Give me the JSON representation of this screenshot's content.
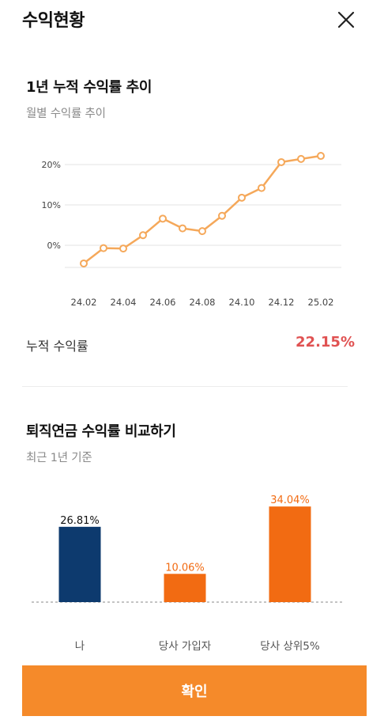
{
  "header": {
    "title": "수익현황"
  },
  "trend": {
    "title": "1년 누적 수익률 추이",
    "subtitle": "월별 수익률 추이"
  },
  "cumulative": {
    "label": "누적 수익률",
    "value": "22.15%"
  },
  "compare": {
    "title": "퇴직연금 수익률 비교하기",
    "subtitle": "최근 1년 기준"
  },
  "confirm_label": "확인",
  "colors": {
    "line": "#f5a85a",
    "navy_bar": "#0d3a6e",
    "orange_bar": "#f26b12",
    "button": "#f58a2a",
    "accent_red": "#e05252"
  },
  "chart_data": [
    {
      "type": "line",
      "x": [
        "24.02",
        "24.03",
        "24.04",
        "24.05",
        "24.06",
        "24.07",
        "24.08",
        "24.09",
        "24.10",
        "24.11",
        "24.12",
        "25.01",
        "25.02"
      ],
      "x_tick_labels": [
        "24.02",
        "24.04",
        "24.06",
        "24.08",
        "24.10",
        "24.12",
        "25.02"
      ],
      "y_tick_labels": [
        "20%",
        "10%",
        "0%"
      ],
      "y_ticks": [
        20,
        10,
        0
      ],
      "series": [
        {
          "values": [
            -4.5,
            -0.7,
            -0.8,
            2.5,
            6.6,
            4.2,
            3.5,
            7.3,
            11.8,
            14.2,
            20.6,
            21.4,
            22.15
          ]
        }
      ],
      "ylim": [
        -5,
        25
      ],
      "grid": true
    },
    {
      "type": "bar",
      "categories": [
        "나",
        "당사 가입자",
        "당사 상위5%"
      ],
      "values": [
        26.81,
        10.06,
        34.04
      ],
      "labels": [
        "26.81%",
        "10.06%",
        "34.04%"
      ],
      "bar_colors": [
        "#0d3a6e",
        "#f26b12",
        "#f26b12"
      ],
      "label_colors": [
        "#111111",
        "#f26b12",
        "#f26b12"
      ],
      "ylim": [
        0,
        36
      ]
    }
  ]
}
